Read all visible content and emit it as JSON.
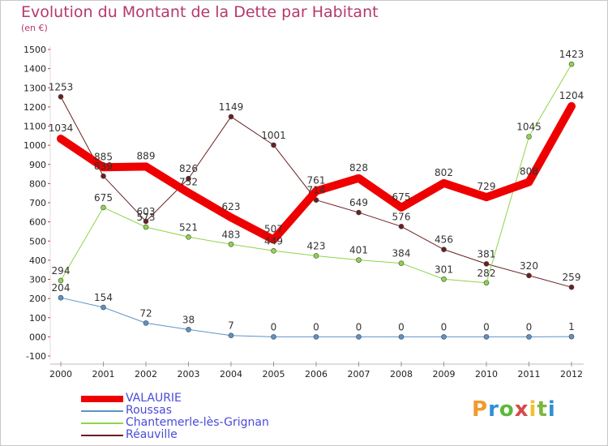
{
  "chart_title": "Evolution du Montant de la Dette par Habitant",
  "chart_subtitle": "(en €)",
  "logo_text": "Proxiti",
  "chart_data": {
    "type": "line",
    "title": "Evolution du Montant de la Dette par Habitant",
    "subtitle": "(en €)",
    "xlabel": "",
    "ylabel": "",
    "categories": [
      "2000",
      "2001",
      "2002",
      "2003",
      "2004",
      "2005",
      "2006",
      "2007",
      "2008",
      "2009",
      "2010",
      "2011",
      "2012"
    ],
    "ylim": [
      -100,
      1500
    ],
    "yticks": [
      "-100",
      "000",
      "100",
      "200",
      "300",
      "400",
      "500",
      "600",
      "700",
      "800",
      "900",
      "1000",
      "1100",
      "1200",
      "1300",
      "1400",
      "1500"
    ],
    "grid": false,
    "legend_position": "bottom-left",
    "series": [
      {
        "name": "Réauville",
        "color": "#6b1f1f",
        "width": 1,
        "values": [
          1253,
          839,
          603,
          826,
          1149,
          1001,
          714,
          649,
          576,
          456,
          381,
          320,
          259
        ],
        "labels": [
          "1253",
          "839",
          "603",
          "826",
          "1149",
          "1001",
          "714",
          "649",
          "576",
          "456",
          "381",
          "320",
          "259"
        ]
      },
      {
        "name": "Chantemerle-lès-Grignan",
        "color": "#8fd44a",
        "width": 1,
        "values": [
          294,
          675,
          573,
          521,
          483,
          449,
          423,
          401,
          384,
          301,
          282,
          1045,
          1423
        ],
        "labels": [
          "294",
          "675",
          "573",
          "521",
          "483",
          "449",
          "423",
          "401",
          "384",
          "301",
          "282",
          "1045",
          "1423"
        ]
      },
      {
        "name": "Roussas",
        "color": "#5b93c7",
        "width": 1,
        "values": [
          204,
          154,
          72,
          38,
          7,
          0,
          0,
          0,
          0,
          0,
          0,
          0,
          1
        ],
        "labels": [
          "204",
          "154",
          "72",
          "38",
          "7",
          "0",
          "0",
          "0",
          "0",
          "0",
          "0",
          "0",
          "1"
        ]
      },
      {
        "name": "VALAURIE",
        "color": "#ee0000",
        "width": 10,
        "values": [
          1034,
          885,
          889,
          752,
          623,
          507,
          761,
          828,
          675,
          802,
          729,
          808,
          1204
        ],
        "labels": [
          "1034",
          "885",
          "889",
          "752",
          "623",
          "507",
          "761",
          "828",
          "675",
          "802",
          "729",
          "808",
          "1204"
        ]
      }
    ],
    "legend": [
      {
        "name": "VALAURIE",
        "color": "#ee0000"
      },
      {
        "name": "Roussas",
        "color": "#5b93c7"
      },
      {
        "name": "Chantemerle-lès-Grignan",
        "color": "#8fd44a"
      },
      {
        "name": "Réauville",
        "color": "#6b1f1f"
      }
    ]
  }
}
